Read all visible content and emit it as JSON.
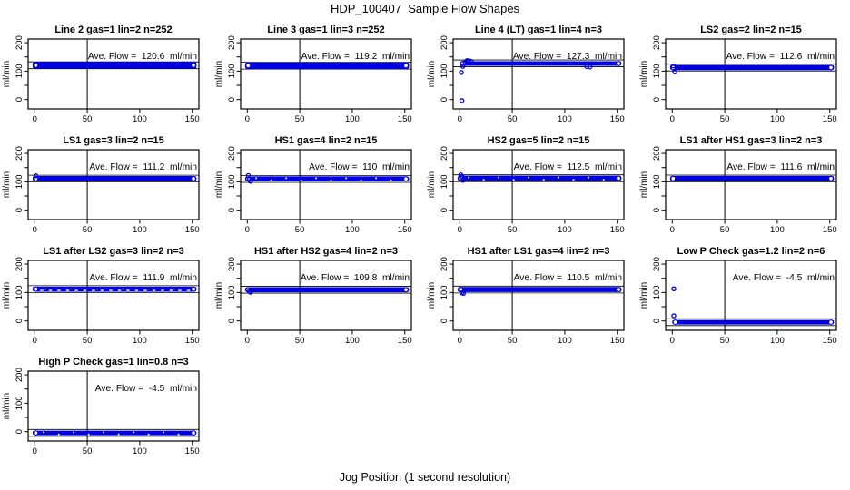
{
  "figure": {
    "title": "HDP_100407  Sample Flow Shapes",
    "xlabel": "Jog Position (1 second resolution)"
  },
  "colors": {
    "point_blue": "#0000E0",
    "axis_black": "#000000",
    "background": "#ffffff"
  },
  "chart_data": {
    "type": "scatter",
    "title": "HDP_100407  Sample Flow Shapes",
    "xlabel": "Jog Position (1 second resolution)",
    "ylabel": "ml/min",
    "grid_cols": 4,
    "x_ticks": [
      0,
      50,
      100,
      150
    ],
    "y_ticks_all": [
      0,
      50,
      100,
      150,
      200
    ],
    "y_ticks_labeled": [
      0,
      100,
      200
    ],
    "xlim": [
      -6.3,
      156.3
    ],
    "ylim": [
      -33,
      213
    ],
    "vline_x": 50,
    "legend": "none",
    "grid": "off",
    "panels": [
      {
        "title": "Line 2 gas=1 lin=2 n=252",
        "ave_flow": 120.6,
        "ave_label": "Ave. Flow =  120.6  ml/min",
        "band": {
          "x0": 0,
          "x1": 152,
          "center": 120.6,
          "half": 12
        },
        "ref_lines": [
          108.6,
          132.6
        ],
        "outliers": [],
        "gaps": "none"
      },
      {
        "title": "Line 3 gas=1 lin=3 n=252",
        "ave_flow": 119.2,
        "ave_label": "Ave. Flow =  119.2  ml/min",
        "band": {
          "x0": 0,
          "x1": 152,
          "center": 119.2,
          "half": 12
        },
        "ref_lines": [
          107.2,
          131.2
        ],
        "outliers": [],
        "gaps": "none"
      },
      {
        "title": "Line 4 (LT) gas=1 lin=4 n=3",
        "ave_flow": 127.3,
        "ave_label": "Ave. Flow =  127.3  ml/min",
        "band": {
          "x0": 2,
          "x1": 152,
          "center": 126.8,
          "half": 8
        },
        "ref_lines": [
          115.3,
          139.3
        ],
        "outliers": [
          [
            1.5,
            95
          ],
          [
            2,
            -4
          ],
          [
            3,
            117
          ],
          [
            5,
            131
          ],
          [
            7,
            137
          ],
          [
            9,
            136
          ],
          [
            11,
            134
          ],
          [
            121,
            116
          ],
          [
            124,
            115
          ]
        ],
        "gaps": "none"
      },
      {
        "title": "LS2 gas=2 lin=2 n=15",
        "ave_flow": 112.6,
        "ave_label": "Ave. Flow =  112.6  ml/min",
        "band": {
          "x0": 0,
          "x1": 152,
          "center": 112.6,
          "half": 9
        },
        "ref_lines": [
          100.6,
          124.6
        ],
        "outliers": [
          [
            1,
            118
          ],
          [
            2.5,
            97
          ]
        ],
        "gaps": "none"
      },
      {
        "title": "LS1 gas=3 lin=2 n=15",
        "ave_flow": 111.2,
        "ave_label": "Ave. Flow =  111.2  ml/min",
        "band": {
          "x0": 0,
          "x1": 152,
          "center": 111.2,
          "half": 9
        },
        "ref_lines": [
          99.2,
          123.2
        ],
        "outliers": [
          [
            1,
            121
          ]
        ],
        "gaps": "none"
      },
      {
        "title": "HS1 gas=4 lin=2 n=15",
        "ave_flow": 110,
        "ave_label": "Ave. Flow =  110  ml/min",
        "band": {
          "x0": 0,
          "x1": 152,
          "center": 110,
          "half": 9
        },
        "ref_lines": [
          98,
          122
        ],
        "outliers": [
          [
            1,
            122
          ],
          [
            2,
            108
          ],
          [
            3,
            102
          ]
        ],
        "gaps": "dots"
      },
      {
        "title": "HS2 gas=5 lin=2 n=15",
        "ave_flow": 112.5,
        "ave_label": "Ave. Flow =  112.5  ml/min",
        "band": {
          "x0": 0,
          "x1": 152,
          "center": 112.5,
          "half": 9
        },
        "ref_lines": [
          100.5,
          124.5
        ],
        "outliers": [
          [
            1,
            124
          ],
          [
            2,
            118
          ],
          [
            3,
            105
          ]
        ],
        "gaps": "dots"
      },
      {
        "title": "LS1 after HS1 gas=3 lin=2 n=3",
        "ave_flow": 111.6,
        "ave_label": "Ave. Flow =  111.6  ml/min",
        "band": {
          "x0": 0,
          "x1": 152,
          "center": 111.6,
          "half": 9
        },
        "ref_lines": [
          99.6,
          123.6
        ],
        "outliers": [],
        "gaps": "none"
      },
      {
        "title": "LS1 after LS2 gas=3 lin=2 n=3",
        "ave_flow": 111.9,
        "ave_label": "Ave. Flow =  111.9  ml/min",
        "band": {
          "x0": 0,
          "x1": 152,
          "center": 111.9,
          "half": 9
        },
        "ref_lines": [
          99.9,
          123.9
        ],
        "outliers": [],
        "gaps": "dashes"
      },
      {
        "title": "HS1 after HS2 gas=4 lin=2 n=3",
        "ave_flow": 109.8,
        "ave_label": "Ave. Flow =  109.8  ml/min",
        "band": {
          "x0": 0,
          "x1": 152,
          "center": 109.8,
          "half": 9
        },
        "ref_lines": [
          97.8,
          121.8
        ],
        "outliers": [
          [
            2,
            104
          ],
          [
            3,
            101
          ]
        ],
        "gaps": "none"
      },
      {
        "title": "HS1 after LS1 gas=4 lin=2 n=3",
        "ave_flow": 110.5,
        "ave_label": "Ave. Flow =  110.5  ml/min",
        "band": {
          "x0": 0,
          "x1": 152,
          "center": 110.5,
          "half": 9
        },
        "ref_lines": [
          98.5,
          122.5
        ],
        "outliers": [
          [
            2,
            99
          ],
          [
            3.5,
            97
          ]
        ],
        "gaps": "none"
      },
      {
        "title": "Low P Check gas=1.2 lin=2 n=6",
        "ave_flow": -4.5,
        "ave_label": "Ave. Flow =  -4.5  ml/min",
        "band": {
          "x0": 2,
          "x1": 152,
          "center": -4.5,
          "half": 8
        },
        "ref_lines": [
          -16.5,
          7.5
        ],
        "outliers": [
          [
            1.5,
            113
          ],
          [
            1.5,
            18
          ]
        ],
        "gaps": "none"
      },
      {
        "title": "High P Check gas=1 lin=0.8 n=3",
        "ave_flow": -4.5,
        "ave_label": "Ave. Flow =  -4.5  ml/min",
        "band": {
          "x0": 0,
          "x1": 152,
          "center": -4.5,
          "half": 8
        },
        "ref_lines": [
          -16.5,
          7.5
        ],
        "outliers": [],
        "gaps": "dots"
      }
    ]
  }
}
